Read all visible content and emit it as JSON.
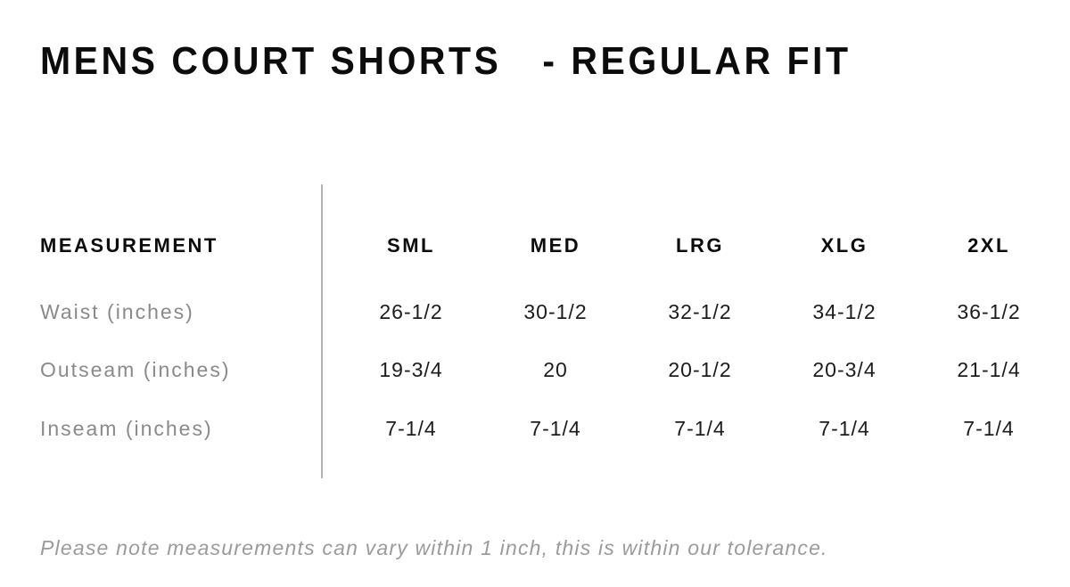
{
  "title": {
    "product": "MENS COURT SHORTS",
    "fit": "- REGULAR FIT"
  },
  "table": {
    "measurement_header": "MEASUREMENT",
    "size_headers": [
      "SML",
      "MED",
      "LRG",
      "XLG",
      "2XL"
    ],
    "rows": [
      {
        "label": "Waist (inches)",
        "values": [
          "26-1/2",
          "30-1/2",
          "32-1/2",
          "34-1/2",
          "36-1/2"
        ]
      },
      {
        "label": "Outseam (inches)",
        "values": [
          "19-3/4",
          "20",
          "20-1/2",
          "20-3/4",
          "21-1/4"
        ]
      },
      {
        "label": "Inseam (inches)",
        "values": [
          "7-1/4",
          "7-1/4",
          "7-1/4",
          "7-1/4",
          "7-1/4"
        ]
      }
    ]
  },
  "footnote": "Please note measurements can vary within 1 inch, this is within our tolerance.",
  "colors": {
    "text_primary": "#0c0c0c",
    "value_text": "#1c1c1c",
    "label_gray": "#8a8a8a",
    "note_gray": "#9b9b9b",
    "divider_gray": "#b3b3b3"
  }
}
